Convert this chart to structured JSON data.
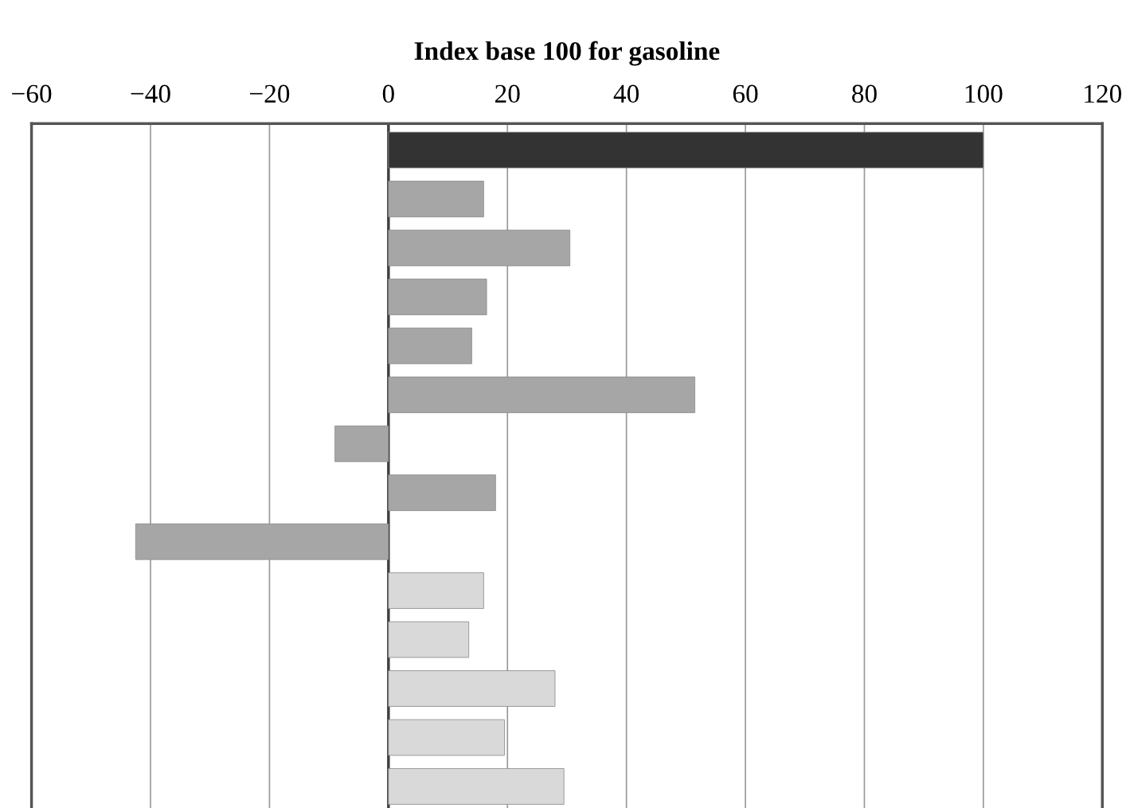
{
  "chart_data": {
    "type": "bar",
    "orientation": "horizontal",
    "xlabel": "Index base 100 for gasoline",
    "categories": [
      null,
      null,
      null,
      null,
      null,
      null,
      null,
      null,
      null,
      null,
      null,
      null,
      null,
      null
    ],
    "values": [
      100,
      16,
      30.5,
      16.5,
      14,
      51.5,
      -9,
      18,
      -42.5,
      16,
      13.5,
      28,
      19.5,
      29.5
    ],
    "colors": [
      "#333333",
      "#a6a6a6",
      "#a6a6a6",
      "#a6a6a6",
      "#a6a6a6",
      "#a6a6a6",
      "#a6a6a6",
      "#a6a6a6",
      "#a6a6a6",
      "#d9d9d9",
      "#d9d9d9",
      "#d9d9d9",
      "#d9d9d9",
      "#d9d9d9"
    ],
    "xlim": [
      -60,
      120
    ],
    "xticks": [
      {
        "value": -60,
        "label": "−60"
      },
      {
        "value": -40,
        "label": "−40"
      },
      {
        "value": -20,
        "label": "−20"
      },
      0,
      20,
      40,
      60,
      80,
      100,
      120
    ],
    "grid": "x"
  }
}
